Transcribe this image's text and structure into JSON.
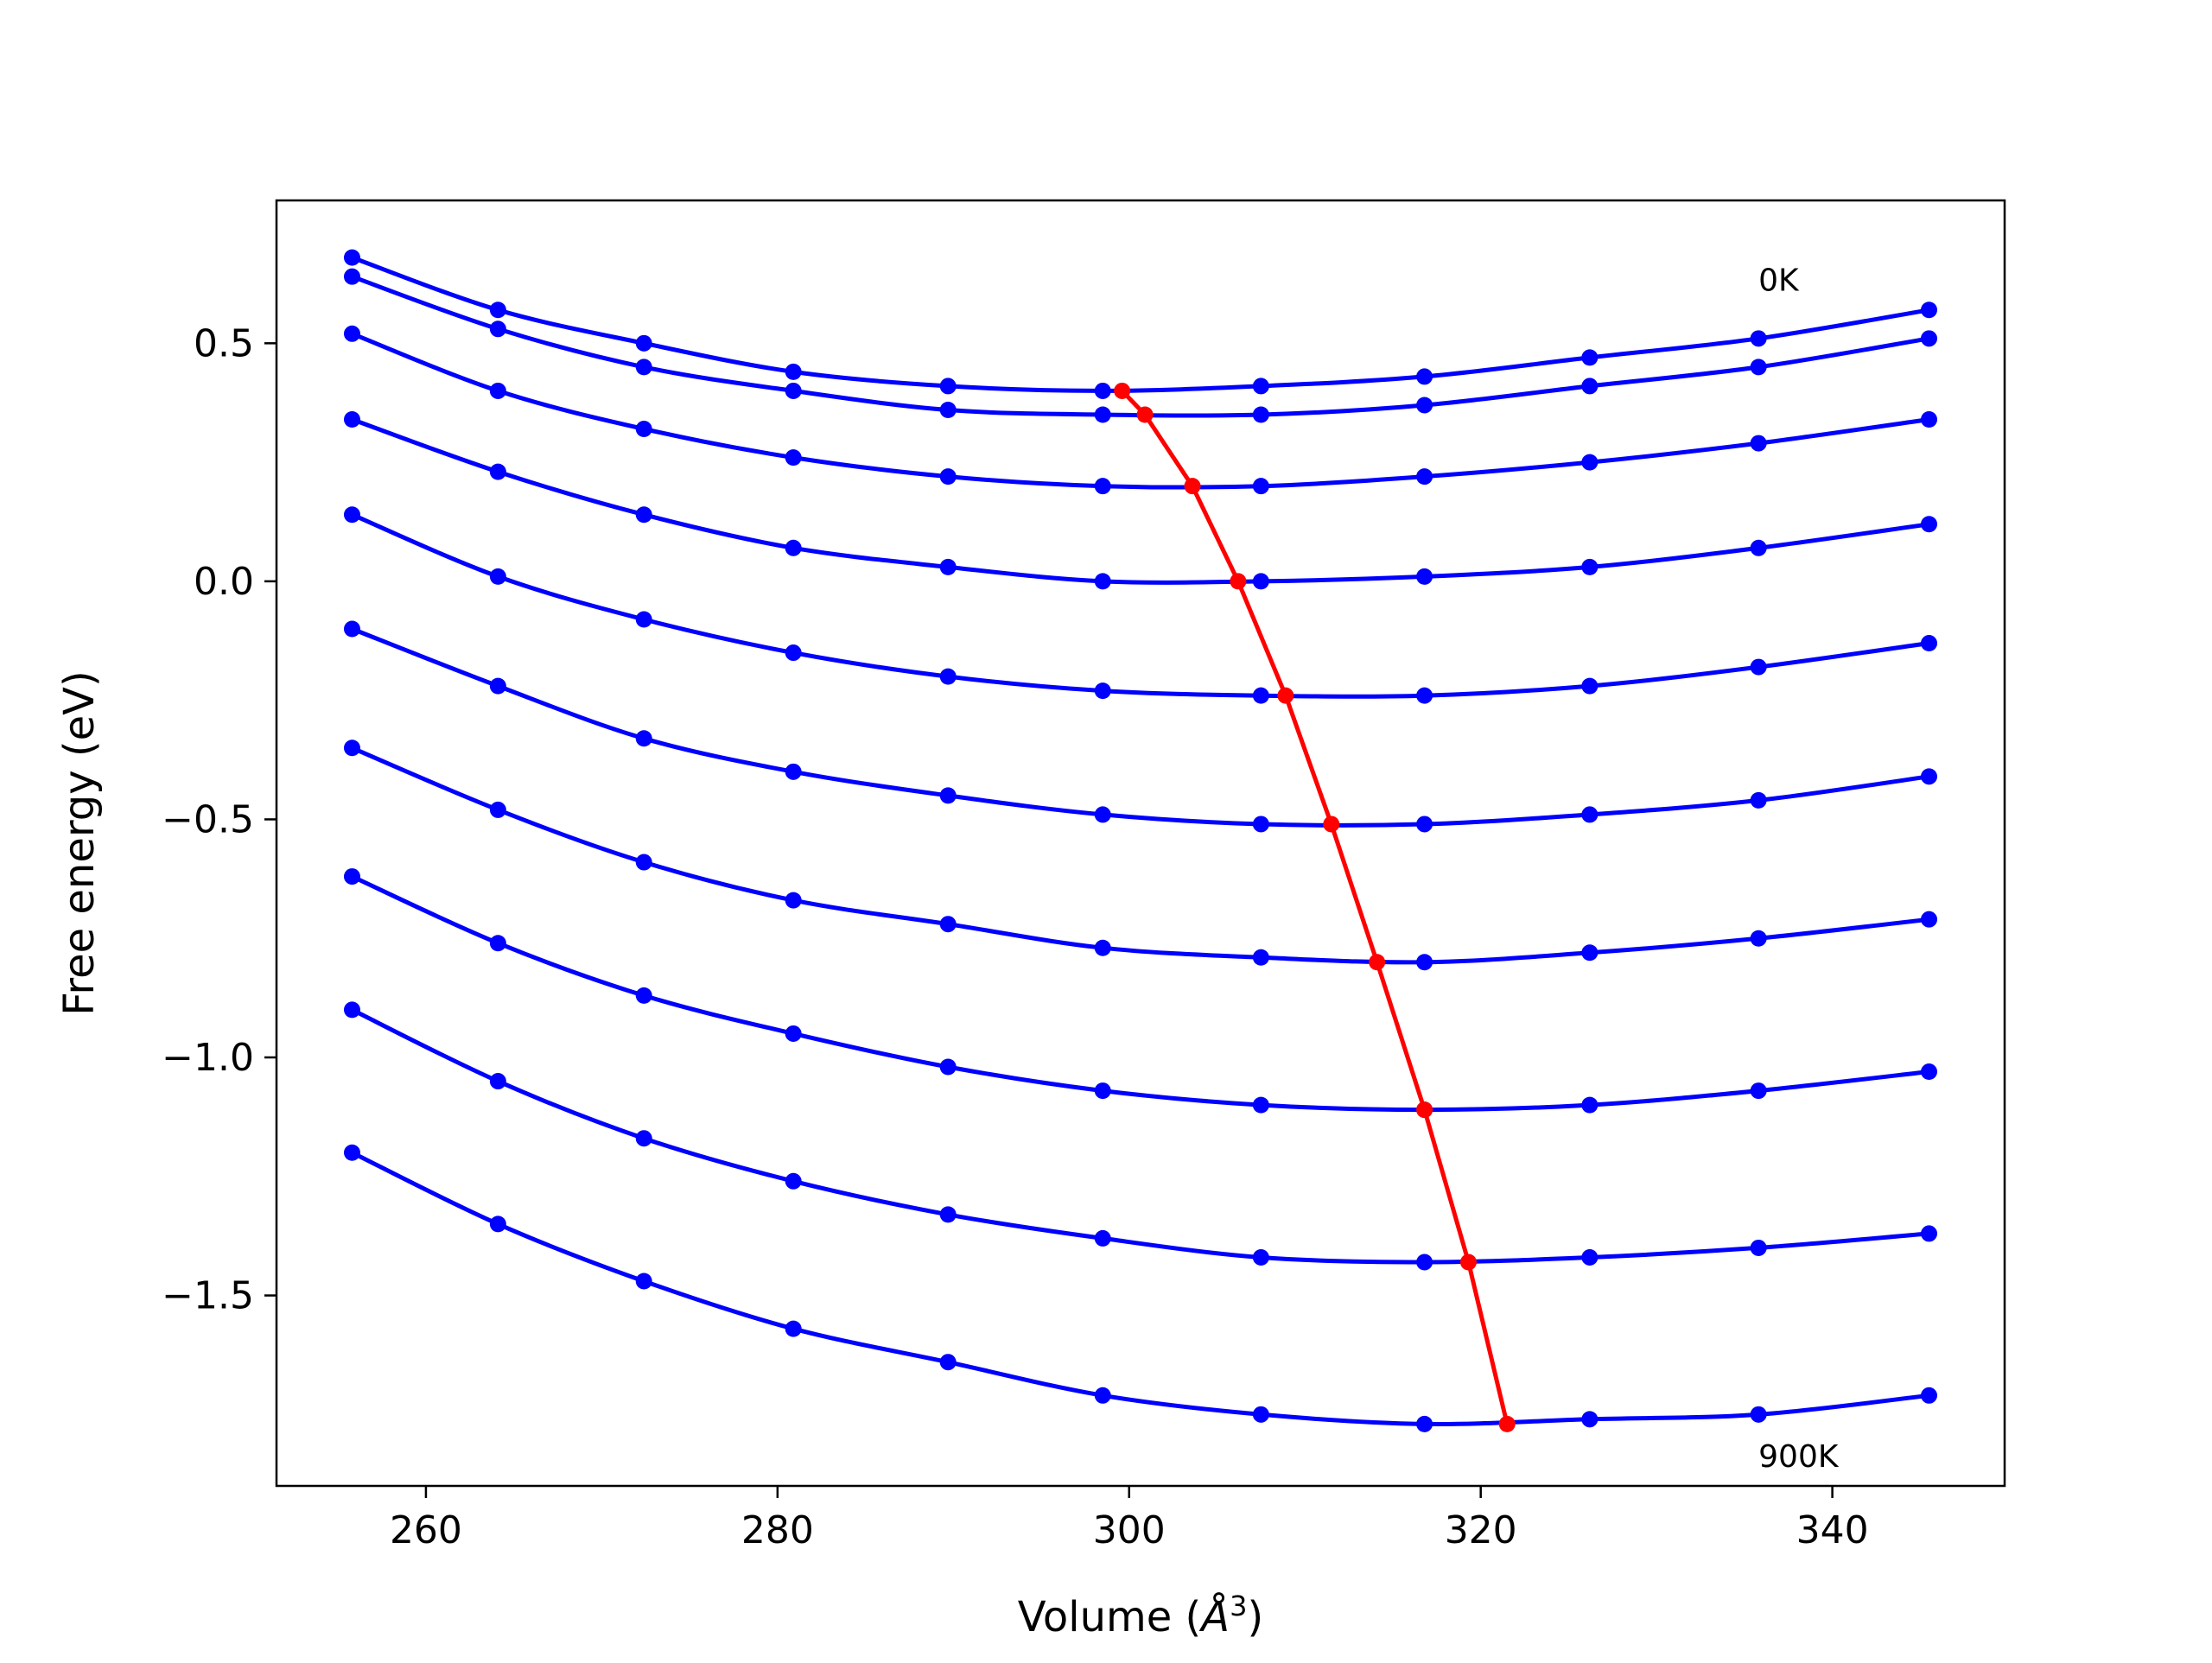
{
  "chart_data": {
    "type": "line",
    "title": "",
    "xlabel": "Volume (",
    "xlabel_unit": "Å",
    "xlabel_unit_exp": "3",
    "xlabel_close": ")",
    "ylabel": "Free energy (eV)",
    "xlim": [
      251.5,
      349.8
    ],
    "ylim": [
      -1.9,
      0.8
    ],
    "xticks": [
      260,
      280,
      300,
      320,
      340
    ],
    "xtick_labels": [
      "260",
      "280",
      "300",
      "320",
      "340"
    ],
    "yticks": [
      -1.5,
      -1.0,
      -0.5,
      0.0,
      0.5
    ],
    "ytick_labels": [
      "−1.5",
      "−1.0",
      "−0.5",
      "0.0",
      "0.5"
    ],
    "grid": false,
    "legend": "none",
    "series_color": "#0000ff",
    "min_line_color": "#ff0000",
    "x": [
      255.8,
      264.1,
      272.4,
      280.9,
      289.7,
      298.5,
      307.5,
      316.8,
      326.2,
      335.8,
      345.5
    ],
    "series": [
      {
        "values": [
          0.68,
          0.57,
          0.5,
          0.44,
          0.41,
          0.4,
          0.41,
          0.43,
          0.47,
          0.51,
          0.57
        ]
      },
      {
        "values": [
          0.64,
          0.53,
          0.45,
          0.4,
          0.36,
          0.35,
          0.35,
          0.37,
          0.41,
          0.45,
          0.51
        ]
      },
      {
        "values": [
          0.52,
          0.4,
          0.32,
          0.26,
          0.22,
          0.2,
          0.2,
          0.22,
          0.25,
          0.29,
          0.34
        ]
      },
      {
        "values": [
          0.34,
          0.23,
          0.14,
          0.07,
          0.03,
          0.0,
          0.0,
          0.01,
          0.03,
          0.07,
          0.12
        ]
      },
      {
        "values": [
          0.14,
          0.01,
          -0.08,
          -0.15,
          -0.2,
          -0.23,
          -0.24,
          -0.24,
          -0.22,
          -0.18,
          -0.13
        ]
      },
      {
        "values": [
          -0.1,
          -0.22,
          -0.33,
          -0.4,
          -0.45,
          -0.49,
          -0.51,
          -0.51,
          -0.49,
          -0.46,
          -0.41
        ]
      },
      {
        "values": [
          -0.35,
          -0.48,
          -0.59,
          -0.67,
          -0.72,
          -0.77,
          -0.79,
          -0.8,
          -0.78,
          -0.75,
          -0.71
        ]
      },
      {
        "values": [
          -0.62,
          -0.76,
          -0.87,
          -0.95,
          -1.02,
          -1.07,
          -1.1,
          -1.11,
          -1.1,
          -1.07,
          -1.03
        ]
      },
      {
        "values": [
          -0.9,
          -1.05,
          -1.17,
          -1.26,
          -1.33,
          -1.38,
          -1.42,
          -1.43,
          -1.42,
          -1.4,
          -1.37
        ]
      },
      {
        "values": [
          -1.2,
          -1.35,
          -1.47,
          -1.57,
          -1.64,
          -1.71,
          -1.75,
          -1.77,
          -1.76,
          -1.75,
          -1.71
        ]
      }
    ],
    "minima": {
      "x": [
        299.6,
        300.9,
        303.6,
        306.2,
        308.9,
        311.5,
        314.1,
        316.8,
        319.3,
        321.5
      ],
      "y": [
        0.4,
        0.35,
        0.2,
        0.0,
        -0.24,
        -0.51,
        -0.8,
        -1.11,
        -1.43,
        -1.77
      ]
    },
    "annotations": [
      {
        "text": "0K",
        "x": 335.8,
        "y": 0.61
      },
      {
        "text": "900K",
        "x": 335.8,
        "y": -1.86
      }
    ]
  }
}
